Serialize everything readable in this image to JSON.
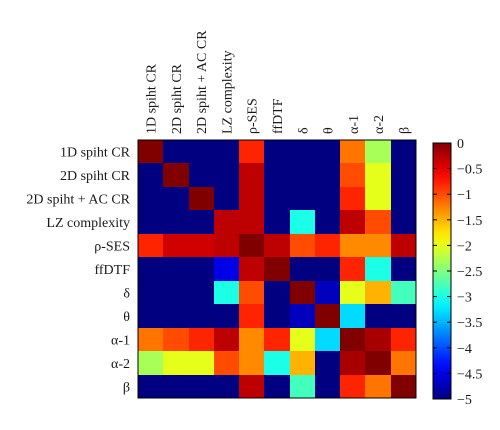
{
  "chart_data": {
    "type": "heatmap",
    "row_labels": [
      "1D spiht CR",
      "2D spiht CR",
      "2D spiht + AC CR",
      "LZ complexity",
      "ρ-SES",
      "ffDTF",
      "δ",
      "θ",
      "α-1",
      "α-2",
      "β"
    ],
    "col_labels": [
      "1D spiht CR",
      "2D spiht CR",
      "2D spiht + AC CR",
      "LZ complexity",
      "ρ-SES",
      "ffDTF",
      "δ",
      "θ",
      "α-1",
      "α-2",
      "β"
    ],
    "values": [
      [
        0,
        -5,
        -5,
        -5,
        -0.8,
        -5,
        -5,
        -5,
        -1.2,
        -2.3,
        -5
      ],
      [
        -5,
        0,
        -5,
        -5,
        -0.3,
        -5,
        -5,
        -5,
        -1.0,
        -2.0,
        -5
      ],
      [
        -5,
        -5,
        0,
        -5,
        -0.3,
        -5,
        -5,
        -5,
        -0.8,
        -2.0,
        -5
      ],
      [
        -5,
        -5,
        -5,
        -0.3,
        -0.3,
        -5,
        -3.0,
        -5,
        -0.3,
        -1.0,
        -5
      ],
      [
        -0.8,
        -0.4,
        -0.4,
        -0.3,
        0,
        -0.3,
        -1.0,
        -0.8,
        -1.3,
        -1.3,
        -0.3
      ],
      [
        -5,
        -5,
        -5,
        -4.5,
        -0.3,
        0,
        -5,
        -5,
        -0.8,
        -3.0,
        -5
      ],
      [
        -5,
        -5,
        -5,
        -3.0,
        -1.0,
        -5,
        0,
        -4.7,
        -2.0,
        -1.5,
        -2.8
      ],
      [
        -5,
        -5,
        -5,
        -5,
        -0.8,
        -5,
        -4.7,
        0,
        -3.3,
        -5,
        -5
      ],
      [
        -1.2,
        -1.0,
        -0.8,
        -0.3,
        -1.3,
        -0.8,
        -2.0,
        -3.3,
        0,
        -0.2,
        -0.8
      ],
      [
        -2.3,
        -2.0,
        -2.0,
        -1.0,
        -1.3,
        -3.0,
        -1.5,
        -5,
        -0.2,
        0,
        -1.2
      ],
      [
        -5,
        -5,
        -5,
        -5,
        -0.3,
        -5,
        -2.8,
        -5,
        -0.8,
        -1.2,
        0
      ]
    ],
    "colorbar": {
      "min": -5,
      "max": 0,
      "ticks": [
        0,
        -0.5,
        -1,
        -1.5,
        -2,
        -2.5,
        -3,
        -3.5,
        -4,
        -4.5,
        -5
      ],
      "tick_labels": [
        "0",
        "−0.5",
        "−1",
        "−1.5",
        "−2",
        "−2.5",
        "−3",
        "−3.5",
        "−4",
        "−4.5",
        "−5"
      ],
      "colormap": "jet"
    }
  }
}
